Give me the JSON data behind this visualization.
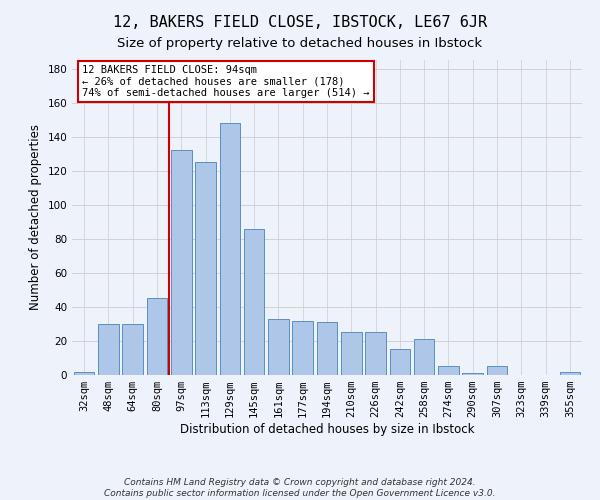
{
  "title": "12, BAKERS FIELD CLOSE, IBSTOCK, LE67 6JR",
  "subtitle": "Size of property relative to detached houses in Ibstock",
  "xlabel": "Distribution of detached houses by size in Ibstock",
  "ylabel": "Number of detached properties",
  "footer_line1": "Contains HM Land Registry data © Crown copyright and database right 2024.",
  "footer_line2": "Contains public sector information licensed under the Open Government Licence v3.0.",
  "categories": [
    "32sqm",
    "48sqm",
    "64sqm",
    "80sqm",
    "97sqm",
    "113sqm",
    "129sqm",
    "145sqm",
    "161sqm",
    "177sqm",
    "194sqm",
    "210sqm",
    "226sqm",
    "242sqm",
    "258sqm",
    "274sqm",
    "290sqm",
    "307sqm",
    "323sqm",
    "339sqm",
    "355sqm"
  ],
  "values": [
    2,
    30,
    30,
    45,
    132,
    125,
    148,
    86,
    33,
    32,
    31,
    25,
    25,
    15,
    21,
    5,
    1,
    5,
    0,
    0,
    2
  ],
  "bar_color": "#aec6e8",
  "bar_edge_color": "#5a8fc2",
  "vline_x_index": 4,
  "vline_color": "#cc0000",
  "annotation_text": "12 BAKERS FIELD CLOSE: 94sqm\n← 26% of detached houses are smaller (178)\n74% of semi-detached houses are larger (514) →",
  "annotation_box_color": "#ffffff",
  "annotation_box_edge": "#cc0000",
  "ylim": [
    0,
    185
  ],
  "yticks": [
    0,
    20,
    40,
    60,
    80,
    100,
    120,
    140,
    160,
    180
  ],
  "grid_color": "#cccccc",
  "bg_color": "#eef2fb",
  "title_fontsize": 11,
  "subtitle_fontsize": 9.5,
  "axis_fontsize": 8.5,
  "tick_fontsize": 7.5,
  "footer_fontsize": 6.5,
  "annotation_fontsize": 7.5
}
